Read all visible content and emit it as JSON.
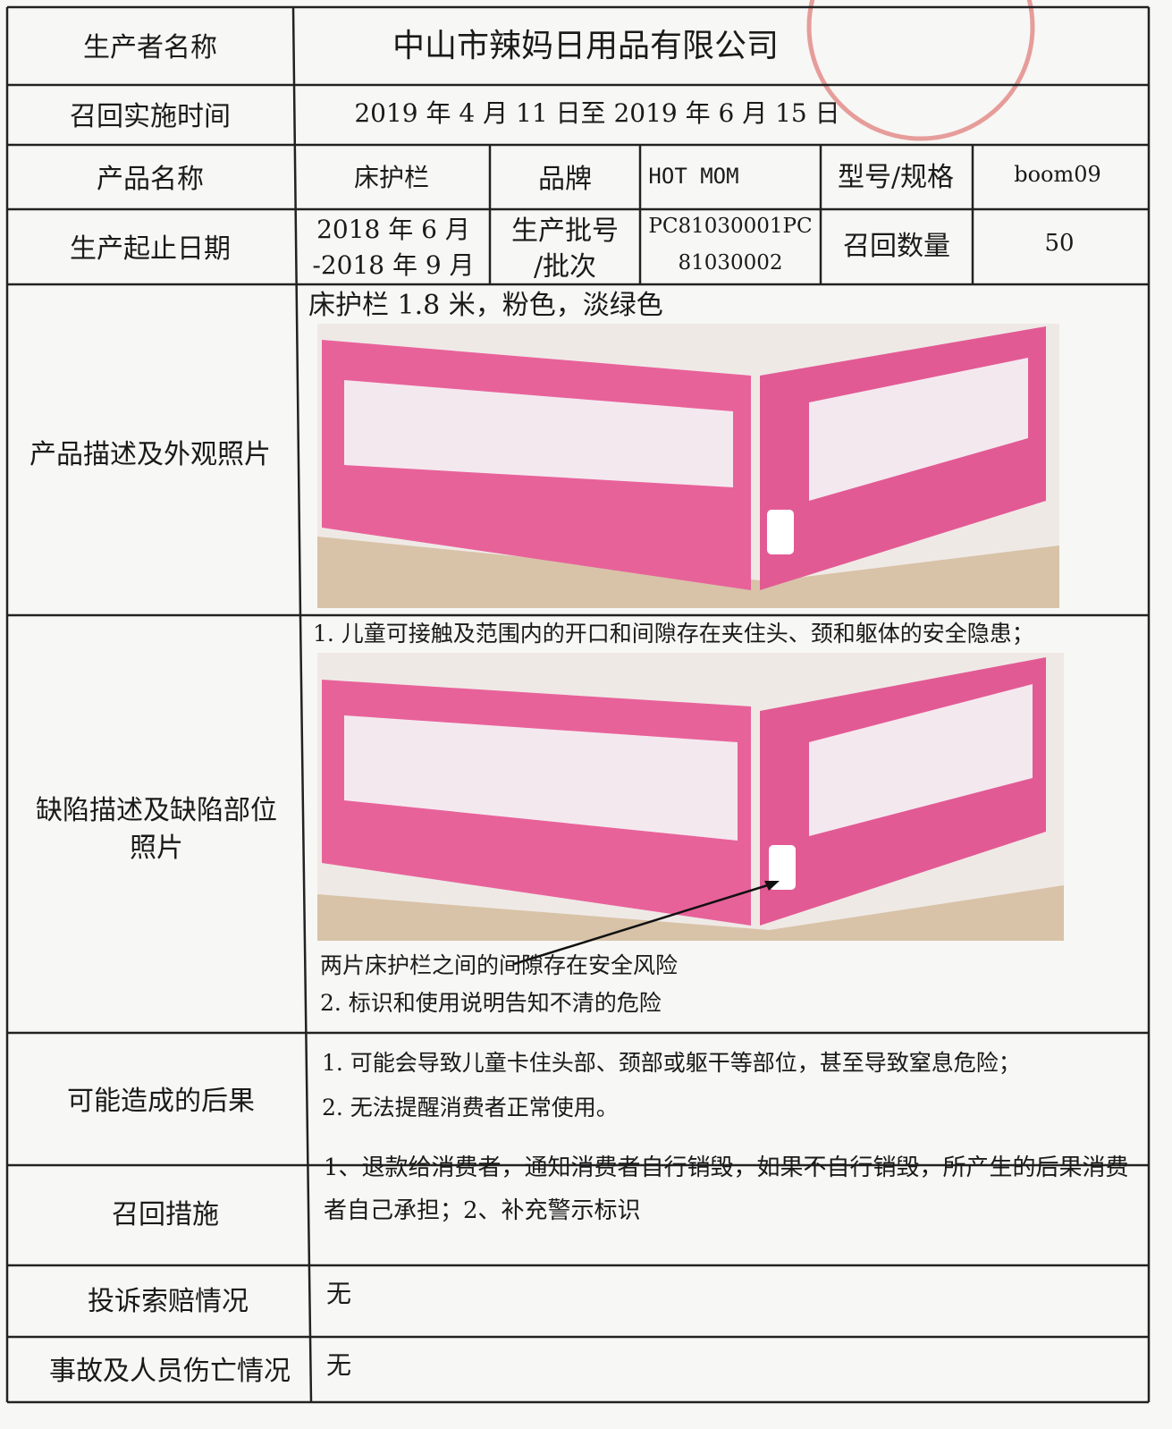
{
  "producer": {
    "label": "生产者名称",
    "value": "中山市辣妈日用品有限公司"
  },
  "recall_period": {
    "label": "召回实施时间",
    "value": "2019 年 4 月 11 日至 2019 年 6 月 15 日"
  },
  "product": {
    "name_label": "产品名称",
    "name": "床护栏",
    "brand_label": "品牌",
    "brand": "HOT MOM",
    "model_label": "型号/规格",
    "model": "boom09"
  },
  "production": {
    "date_label": "生产起止日期",
    "dates": [
      "2018 年 6 月",
      "-2018 年 9 月"
    ],
    "batch_label": [
      "生产批号",
      "/批次"
    ],
    "batch": [
      "PC81030001PC",
      "81030002"
    ],
    "quantity_label": "召回数量",
    "quantity": 50
  },
  "description": {
    "label": "产品描述及外观照片",
    "text": "床护栏 1.8 米，粉色，淡绿色"
  },
  "defect": {
    "label": [
      "缺陷描述及缺陷部位",
      "照片"
    ],
    "text1": "1. 儿童可接触及范围内的开口和间隙存在夹住头、颈和躯体的安全隐患；",
    "annotation": "两片床护栏之间的间隙存在安全风险",
    "text2": "2. 标识和使用说明告知不清的危险"
  },
  "consequences": {
    "label": "可能造成的后果",
    "lines": [
      "1. 可能会导致儿童卡住头部、颈部或躯干等部位，甚至导致窒息危险；",
      "2. 无法提醒消费者正常使用。"
    ]
  },
  "measures": {
    "label": "召回措施",
    "text": "1、退款给消费者，通知消费者自行销毁，如果不自行销毁，所产生的后果消费者自己承担；2、补充警示标识"
  },
  "complaints": {
    "label": "投诉索赔情况",
    "value": "无"
  },
  "accidents": {
    "label": "事故及人员伤亡情况",
    "value": "无"
  }
}
